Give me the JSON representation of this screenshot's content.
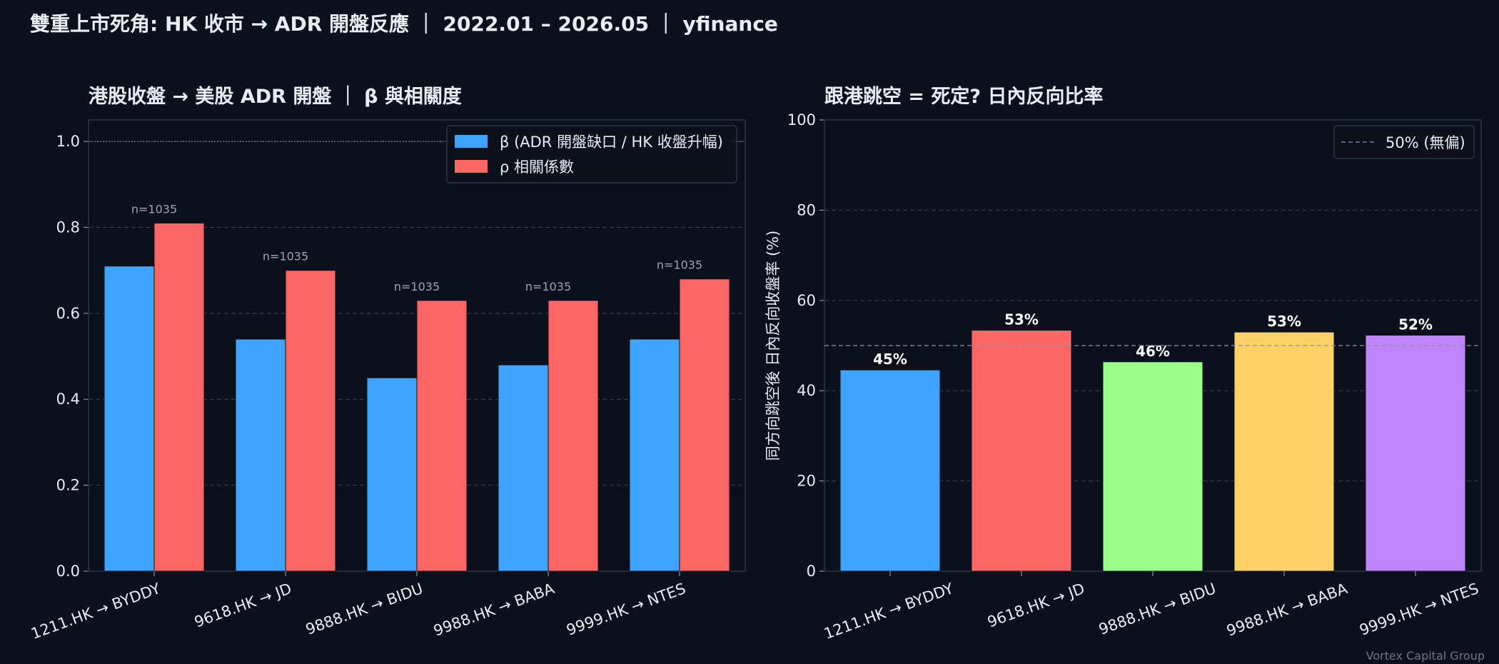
{
  "suptitle": "雙重上市死角: HK 收市 → ADR 開盤反應 ｜ 2022.01 – 2026.05 ｜ yfinance",
  "footer": "Vortex Capital Group",
  "colors": {
    "background": "#0b111c",
    "beta": "#3fa4ff",
    "rho": "#ff6666",
    "bar_colors_right": [
      "#3fa4ff",
      "#ff6666",
      "#99ff88",
      "#ffd166",
      "#c084fc"
    ],
    "grid": "#3a4350",
    "spine": "#2a3442",
    "ref_line": "#8a929c"
  },
  "chart_data": [
    {
      "type": "bar",
      "title": "港股收盤 → 美股 ADR 開盤 ｜ β 與相關度",
      "categories": [
        "1211.HK → BYDDY",
        "9618.HK → JD",
        "9888.HK → BIDU",
        "9988.HK → BABA",
        "9999.HK → NTES"
      ],
      "series": [
        {
          "name": "β (ADR 開盤缺口 / HK 收盤升幅)",
          "values": [
            0.71,
            0.54,
            0.45,
            0.48,
            0.54
          ]
        },
        {
          "name": "ρ 相關係數",
          "values": [
            0.81,
            0.7,
            0.63,
            0.63,
            0.68
          ]
        }
      ],
      "annotations": [
        "n=1035",
        "n=1035",
        "n=1035",
        "n=1035",
        "n=1035"
      ],
      "xlabel": "",
      "ylabel": "",
      "ylim": [
        0,
        1.05
      ],
      "yticks": [
        0.0,
        0.2,
        0.4,
        0.6,
        0.8,
        1.0
      ],
      "ytick_labels": [
        "0.0",
        "0.2",
        "0.4",
        "0.6",
        "0.8",
        "1.0"
      ],
      "reference_line": 1.0,
      "grid": true,
      "legend": "top-right"
    },
    {
      "type": "bar",
      "title": "跟港跳空 = 死定? 日內反向比率",
      "categories": [
        "1211.HK → BYDDY",
        "9618.HK → JD",
        "9888.HK → BIDU",
        "9988.HK → BABA",
        "9999.HK → NTES"
      ],
      "values": [
        44.6,
        53.4,
        46.4,
        53.0,
        52.3
      ],
      "value_labels": [
        "45%",
        "53%",
        "46%",
        "53%",
        "52%"
      ],
      "xlabel": "",
      "ylabel": "同方向跳空後  日內反向收盤率 (%)",
      "ylim": [
        0,
        100
      ],
      "yticks": [
        0,
        20,
        40,
        60,
        80,
        100
      ],
      "ytick_labels": [
        "0",
        "20",
        "40",
        "60",
        "80",
        "100"
      ],
      "reference_line": {
        "value": 50,
        "label": "50% (無偏)"
      },
      "grid": true,
      "legend": "top-right"
    }
  ]
}
